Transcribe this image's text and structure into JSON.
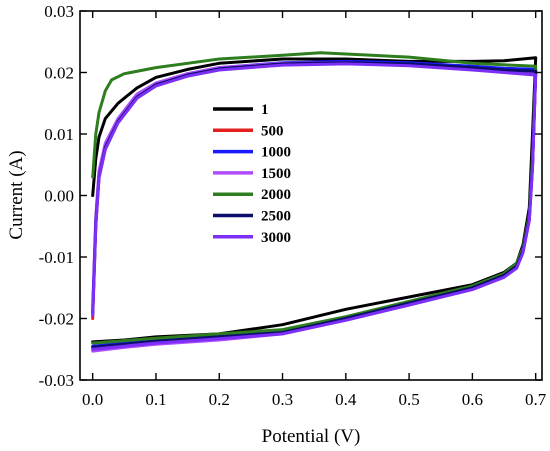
{
  "chart_data": {
    "type": "line",
    "xlabel": "Potential (V)",
    "ylabel": "Current (A)",
    "xlim": [
      -0.02,
      0.71
    ],
    "ylim": [
      -0.03,
      0.03
    ],
    "xticks": [
      "0.0",
      "0.1",
      "0.2",
      "0.3",
      "0.4",
      "0.5",
      "0.6",
      "0.7"
    ],
    "xtick_values": [
      0.0,
      0.1,
      0.2,
      0.3,
      0.4,
      0.5,
      0.6,
      0.7
    ],
    "yticks": [
      "-0.03",
      "-0.02",
      "-0.01",
      "0.00",
      "0.01",
      "0.02",
      "0.03"
    ],
    "ytick_values": [
      -0.03,
      -0.02,
      -0.01,
      0.0,
      0.01,
      0.02,
      0.03
    ],
    "grid": false,
    "legend_position": "center-left",
    "series": [
      {
        "name": "1",
        "color": "#000000",
        "forward": [
          [
            0.0,
            0.0
          ],
          [
            0.005,
            0.006
          ],
          [
            0.01,
            0.0095
          ],
          [
            0.02,
            0.0125
          ],
          [
            0.04,
            0.015
          ],
          [
            0.07,
            0.0175
          ],
          [
            0.1,
            0.0192
          ],
          [
            0.15,
            0.0205
          ],
          [
            0.2,
            0.0215
          ],
          [
            0.3,
            0.0222
          ],
          [
            0.4,
            0.0222
          ],
          [
            0.5,
            0.0218
          ],
          [
            0.6,
            0.0218
          ],
          [
            0.65,
            0.0219
          ],
          [
            0.7,
            0.0224
          ]
        ],
        "reverse": [
          [
            0.7,
            0.0224
          ],
          [
            0.695,
            0.01
          ],
          [
            0.69,
            -0.002
          ],
          [
            0.68,
            -0.008
          ],
          [
            0.67,
            -0.011
          ],
          [
            0.65,
            -0.0125
          ],
          [
            0.6,
            -0.0145
          ],
          [
            0.5,
            -0.0165
          ],
          [
            0.4,
            -0.0185
          ],
          [
            0.3,
            -0.021
          ],
          [
            0.2,
            -0.0225
          ],
          [
            0.1,
            -0.023
          ],
          [
            0.05,
            -0.0235
          ],
          [
            0.0,
            -0.0238
          ]
        ]
      },
      {
        "name": "500",
        "color": "#e3201c",
        "forward": [
          [
            0.0,
            -0.02
          ],
          [
            0.005,
            -0.005
          ],
          [
            0.01,
            0.003
          ],
          [
            0.02,
            0.0075
          ],
          [
            0.04,
            0.012
          ],
          [
            0.07,
            0.016
          ],
          [
            0.1,
            0.0178
          ],
          [
            0.15,
            0.0195
          ],
          [
            0.2,
            0.0205
          ],
          [
            0.3,
            0.0213
          ],
          [
            0.4,
            0.0215
          ],
          [
            0.5,
            0.0213
          ],
          [
            0.6,
            0.0207
          ],
          [
            0.65,
            0.0203
          ],
          [
            0.7,
            0.02
          ]
        ],
        "reverse": [
          [
            0.7,
            0.02
          ],
          [
            0.695,
            0.005
          ],
          [
            0.69,
            -0.004
          ],
          [
            0.68,
            -0.009
          ],
          [
            0.67,
            -0.0115
          ],
          [
            0.65,
            -0.013
          ],
          [
            0.6,
            -0.015
          ],
          [
            0.5,
            -0.0175
          ],
          [
            0.4,
            -0.02
          ],
          [
            0.3,
            -0.022
          ],
          [
            0.2,
            -0.0232
          ],
          [
            0.1,
            -0.024
          ],
          [
            0.05,
            -0.0245
          ],
          [
            0.0,
            -0.025
          ]
        ]
      },
      {
        "name": "1000",
        "color": "#1a1aff",
        "forward": [
          [
            0.0,
            -0.019
          ],
          [
            0.005,
            -0.004
          ],
          [
            0.01,
            0.0035
          ],
          [
            0.02,
            0.008
          ],
          [
            0.04,
            0.0123
          ],
          [
            0.07,
            0.0163
          ],
          [
            0.1,
            0.0182
          ],
          [
            0.15,
            0.0198
          ],
          [
            0.2,
            0.0208
          ],
          [
            0.3,
            0.0216
          ],
          [
            0.4,
            0.0218
          ],
          [
            0.5,
            0.0216
          ],
          [
            0.6,
            0.021
          ],
          [
            0.65,
            0.0207
          ],
          [
            0.7,
            0.0205
          ]
        ],
        "reverse": [
          [
            0.7,
            0.0205
          ],
          [
            0.695,
            0.005
          ],
          [
            0.69,
            -0.0035
          ],
          [
            0.68,
            -0.0088
          ],
          [
            0.67,
            -0.0113
          ],
          [
            0.65,
            -0.0128
          ],
          [
            0.6,
            -0.0148
          ],
          [
            0.5,
            -0.0173
          ],
          [
            0.4,
            -0.0198
          ],
          [
            0.3,
            -0.0222
          ],
          [
            0.2,
            -0.0228
          ],
          [
            0.1,
            -0.0235
          ],
          [
            0.05,
            -0.024
          ],
          [
            0.0,
            -0.0245
          ]
        ]
      },
      {
        "name": "1500",
        "color": "#b04cff",
        "forward": [
          [
            0.0,
            -0.018
          ],
          [
            0.005,
            -0.0035
          ],
          [
            0.01,
            0.004
          ],
          [
            0.02,
            0.0085
          ],
          [
            0.04,
            0.0125
          ],
          [
            0.07,
            0.0165
          ],
          [
            0.1,
            0.0183
          ],
          [
            0.15,
            0.0198
          ],
          [
            0.2,
            0.0208
          ],
          [
            0.3,
            0.0215
          ],
          [
            0.4,
            0.0216
          ],
          [
            0.5,
            0.0213
          ],
          [
            0.6,
            0.0206
          ],
          [
            0.65,
            0.0202
          ],
          [
            0.7,
            0.0198
          ]
        ],
        "reverse": [
          [
            0.7,
            0.0198
          ],
          [
            0.695,
            0.0045
          ],
          [
            0.69,
            -0.004
          ],
          [
            0.68,
            -0.0092
          ],
          [
            0.67,
            -0.0117
          ],
          [
            0.65,
            -0.0132
          ],
          [
            0.6,
            -0.0152
          ],
          [
            0.5,
            -0.0178
          ],
          [
            0.4,
            -0.0202
          ],
          [
            0.3,
            -0.0225
          ],
          [
            0.2,
            -0.0235
          ],
          [
            0.1,
            -0.0242
          ],
          [
            0.05,
            -0.0247
          ],
          [
            0.0,
            -0.0253
          ]
        ]
      },
      {
        "name": "2000",
        "color": "#2e7d1e",
        "forward": [
          [
            0.0,
            0.003
          ],
          [
            0.005,
            0.01
          ],
          [
            0.01,
            0.0135
          ],
          [
            0.02,
            0.017
          ],
          [
            0.03,
            0.0188
          ],
          [
            0.05,
            0.0198
          ],
          [
            0.1,
            0.0208
          ],
          [
            0.15,
            0.0215
          ],
          [
            0.2,
            0.0222
          ],
          [
            0.3,
            0.0228
          ],
          [
            0.36,
            0.0232
          ],
          [
            0.4,
            0.023
          ],
          [
            0.5,
            0.0225
          ],
          [
            0.6,
            0.0215
          ],
          [
            0.7,
            0.021
          ]
        ],
        "reverse": [
          [
            0.7,
            0.021
          ],
          [
            0.695,
            0.006
          ],
          [
            0.69,
            -0.003
          ],
          [
            0.68,
            -0.0085
          ],
          [
            0.67,
            -0.011
          ],
          [
            0.65,
            -0.0127
          ],
          [
            0.6,
            -0.0147
          ],
          [
            0.5,
            -0.0172
          ],
          [
            0.4,
            -0.0197
          ],
          [
            0.3,
            -0.0218
          ],
          [
            0.2,
            -0.0225
          ],
          [
            0.1,
            -0.0232
          ],
          [
            0.05,
            -0.0236
          ],
          [
            0.0,
            -0.024
          ]
        ]
      },
      {
        "name": "2500",
        "color": "#0d0d6b",
        "forward": [
          [
            0.0,
            -0.019
          ],
          [
            0.005,
            -0.0045
          ],
          [
            0.01,
            0.003
          ],
          [
            0.02,
            0.0078
          ],
          [
            0.04,
            0.012
          ],
          [
            0.07,
            0.016
          ],
          [
            0.1,
            0.018
          ],
          [
            0.15,
            0.0196
          ],
          [
            0.2,
            0.0206
          ],
          [
            0.3,
            0.0214
          ],
          [
            0.4,
            0.0216
          ],
          [
            0.5,
            0.0214
          ],
          [
            0.6,
            0.0208
          ],
          [
            0.65,
            0.0204
          ],
          [
            0.7,
            0.0202
          ]
        ],
        "reverse": [
          [
            0.7,
            0.0202
          ],
          [
            0.695,
            0.005
          ],
          [
            0.69,
            -0.0035
          ],
          [
            0.68,
            -0.009
          ],
          [
            0.67,
            -0.0115
          ],
          [
            0.65,
            -0.013
          ],
          [
            0.6,
            -0.015
          ],
          [
            0.5,
            -0.0175
          ],
          [
            0.4,
            -0.02
          ],
          [
            0.3,
            -0.0223
          ],
          [
            0.2,
            -0.023
          ],
          [
            0.1,
            -0.0237
          ],
          [
            0.05,
            -0.0242
          ],
          [
            0.0,
            -0.0247
          ]
        ]
      },
      {
        "name": "3000",
        "color": "#7b2ff7",
        "forward": [
          [
            0.0,
            -0.0195
          ],
          [
            0.005,
            -0.005
          ],
          [
            0.01,
            0.0028
          ],
          [
            0.02,
            0.0075
          ],
          [
            0.04,
            0.0118
          ],
          [
            0.07,
            0.0158
          ],
          [
            0.1,
            0.0178
          ],
          [
            0.15,
            0.0194
          ],
          [
            0.2,
            0.0204
          ],
          [
            0.3,
            0.0212
          ],
          [
            0.4,
            0.0214
          ],
          [
            0.5,
            0.0211
          ],
          [
            0.6,
            0.0204
          ],
          [
            0.65,
            0.02
          ],
          [
            0.7,
            0.0196
          ]
        ],
        "reverse": [
          [
            0.7,
            0.0196
          ],
          [
            0.695,
            0.0045
          ],
          [
            0.69,
            -0.004
          ],
          [
            0.68,
            -0.0093
          ],
          [
            0.67,
            -0.0118
          ],
          [
            0.65,
            -0.0133
          ],
          [
            0.6,
            -0.0153
          ],
          [
            0.5,
            -0.0178
          ],
          [
            0.4,
            -0.0203
          ],
          [
            0.3,
            -0.0225
          ],
          [
            0.2,
            -0.0233
          ],
          [
            0.1,
            -0.024
          ],
          [
            0.05,
            -0.0245
          ],
          [
            0.0,
            -0.025
          ]
        ]
      }
    ]
  }
}
